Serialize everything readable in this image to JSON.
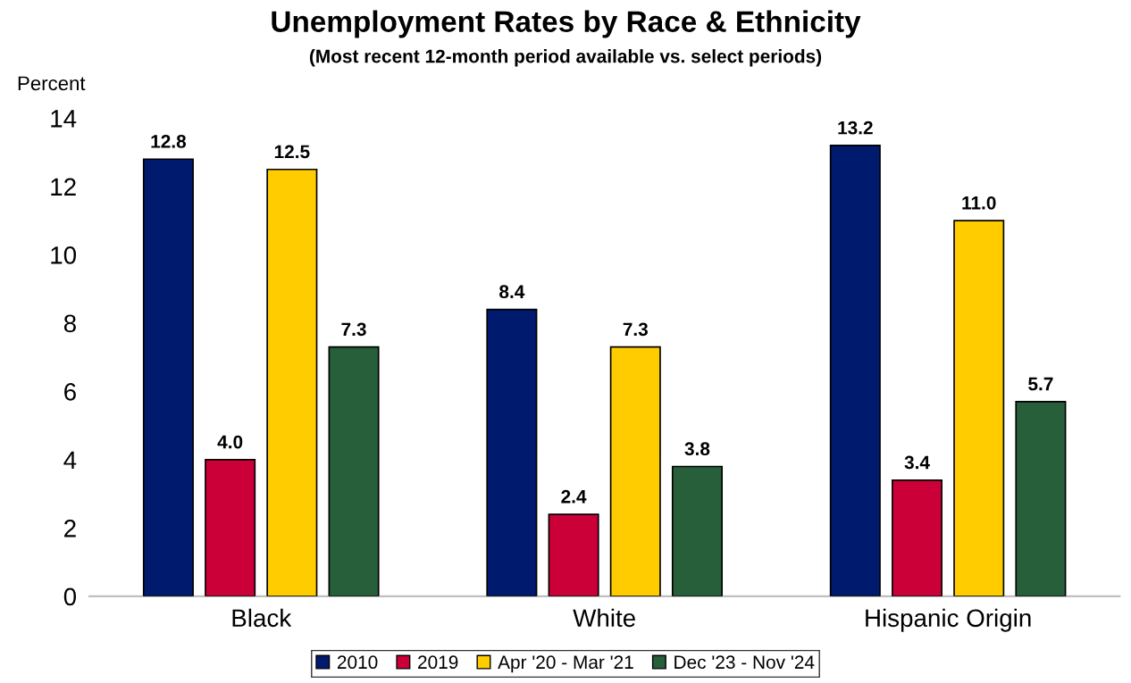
{
  "chart_data": {
    "type": "bar",
    "title": "Unemployment Rates by Race & Ethnicity",
    "subtitle": "(Most recent 12-month period available vs. select periods)",
    "ylabel": "Percent",
    "categories": [
      "Black",
      "White",
      "Hispanic Origin"
    ],
    "series": [
      {
        "name": "2010",
        "color": "#001a6e",
        "values": [
          12.8,
          8.4,
          13.2
        ],
        "value_labels": [
          "12.8",
          "8.4",
          "13.2"
        ]
      },
      {
        "name": "2019",
        "color": "#cc0038",
        "values": [
          4.0,
          2.4,
          3.4
        ],
        "value_labels": [
          "4.0",
          "2.4",
          "3.4"
        ]
      },
      {
        "name": "Apr '20 - Mar '21",
        "color": "#ffcc00",
        "values": [
          12.5,
          7.3,
          11.0
        ],
        "value_labels": [
          "12.5",
          "7.3",
          "11.0"
        ]
      },
      {
        "name": "Dec '23 - Nov '24",
        "color": "#265f3a",
        "values": [
          7.3,
          3.8,
          5.7
        ],
        "value_labels": [
          "7.3",
          "3.8",
          "5.7"
        ]
      }
    ],
    "ylim": [
      0,
      14
    ],
    "yticks": [
      0,
      2,
      4,
      6,
      8,
      10,
      12,
      14
    ],
    "grid": false,
    "legend": "bottom"
  }
}
